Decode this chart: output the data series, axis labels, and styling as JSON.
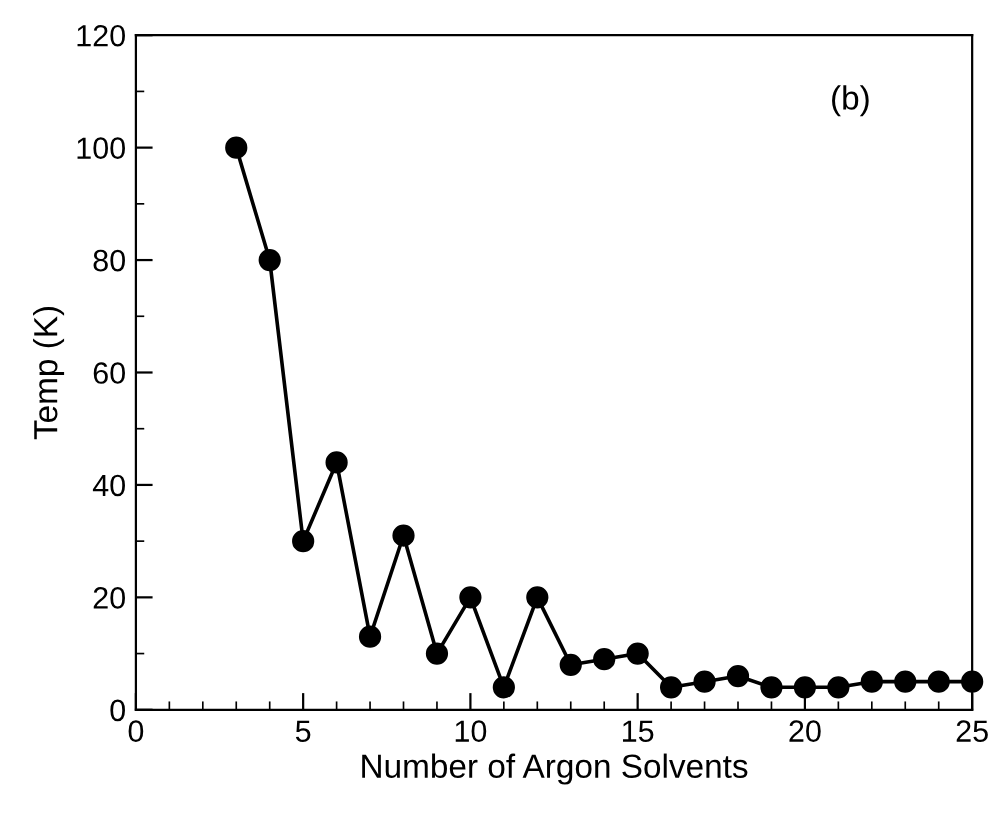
{
  "chart_data": {
    "type": "line",
    "xlabel": "Number of Argon Solvents",
    "ylabel": "Temp (K)",
    "annotations": [
      "(b)"
    ],
    "x": [
      3,
      4,
      5,
      6,
      7,
      8,
      9,
      10,
      11,
      12,
      13,
      14,
      15,
      16,
      17,
      18,
      19,
      20,
      21,
      22,
      23,
      24,
      25
    ],
    "series": [
      {
        "color": "#000000",
        "values": [
          100,
          80,
          30,
          44,
          13,
          31,
          10,
          20,
          4,
          20,
          8,
          9,
          10,
          4,
          5,
          6,
          4,
          4,
          4,
          5,
          5,
          5,
          5
        ]
      }
    ],
    "xlim": [
      0,
      25
    ],
    "xticks": [
      0,
      5,
      10,
      15,
      20,
      25
    ],
    "ylim": [
      0,
      120
    ],
    "yticks": [
      0,
      20,
      40,
      60,
      80,
      100,
      120
    ],
    "marker": "circle",
    "line_style": "solid",
    "grid": false,
    "legend": false
  }
}
